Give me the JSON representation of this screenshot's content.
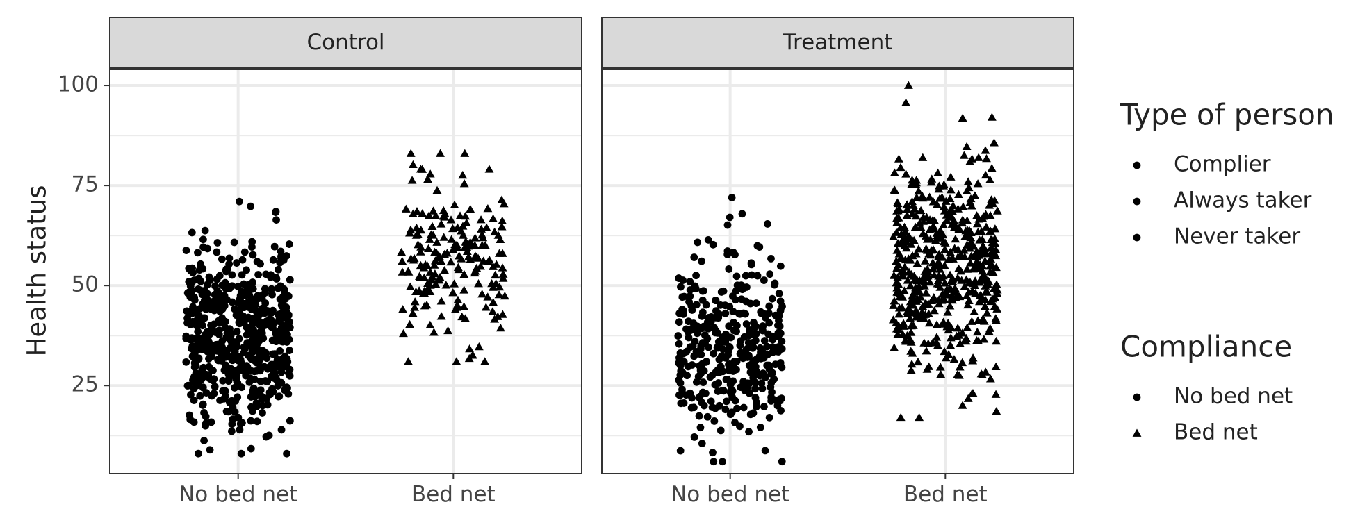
{
  "chart_data": {
    "type": "scatter",
    "ylabel": "Health status",
    "xlabel": "",
    "categories": [
      "No bed net",
      "Bed net"
    ],
    "y_ticks": [
      25,
      50,
      75,
      100
    ],
    "ylim": [
      3,
      104
    ],
    "grid": true,
    "legend_placement": "right",
    "panels": [
      {
        "title": "Control",
        "groups": [
          {
            "category": "No bed net",
            "shape": "circle",
            "n": 620,
            "mean": 37,
            "sd": 10.5,
            "min": 8,
            "max": 71,
            "seed": 11
          },
          {
            "category": "Bed net",
            "shape": "triangle",
            "n": 200,
            "mean": 56,
            "sd": 9.5,
            "min": 31,
            "max": 83,
            "seed": 23
          }
        ]
      },
      {
        "title": "Treatment",
        "groups": [
          {
            "category": "No bed net",
            "shape": "circle",
            "n": 380,
            "mean": 35,
            "sd": 11,
            "min": 6,
            "max": 72,
            "seed": 37
          },
          {
            "category": "Bed net",
            "shape": "triangle",
            "n": 520,
            "mean": 54,
            "sd": 13,
            "min": 17,
            "max": 100,
            "seed": 51
          }
        ]
      }
    ],
    "legends": [
      {
        "title": "Type of person",
        "items": [
          {
            "label": "Complier",
            "shape": "circle"
          },
          {
            "label": "Always taker",
            "shape": "circle"
          },
          {
            "label": "Never taker",
            "shape": "circle"
          }
        ]
      },
      {
        "title": "Compliance",
        "items": [
          {
            "label": "No bed net",
            "shape": "circle"
          },
          {
            "label": "Bed net",
            "shape": "triangle"
          }
        ]
      }
    ],
    "colors": {
      "points": "#000000",
      "grid": "#ebebeb",
      "strip": "#d9d9d9",
      "border": "#333333"
    }
  }
}
